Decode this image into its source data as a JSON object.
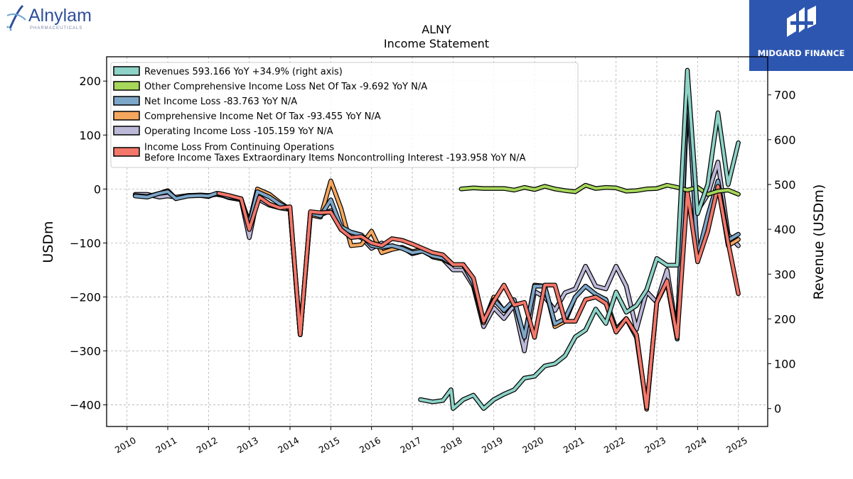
{
  "brand_left": {
    "name": "Alnylam",
    "sub": "PHARMACEUTICALS"
  },
  "brand_right": {
    "name": "MIDGARD FINANCE"
  },
  "chart_data": {
    "type": "line",
    "title": "ALNY",
    "subtitle": "Income Statement",
    "ylabel": "USDm",
    "y2label": "Revenue (USDm)",
    "ylim": [
      -440,
      245
    ],
    "y2lim": [
      -40,
      785
    ],
    "yticks": [
      200,
      100,
      0,
      -100,
      -200,
      -300,
      -400
    ],
    "ytick_labels": [
      "200",
      "100",
      "0",
      "−100",
      "−200",
      "−300",
      "−400"
    ],
    "y2ticks": [
      0,
      100,
      200,
      300,
      400,
      500,
      600,
      700
    ],
    "xlim": [
      2009.5,
      2025.72
    ],
    "xticks": [
      2010,
      2011,
      2012,
      2013,
      2014,
      2015,
      2016,
      2017,
      2018,
      2019,
      2020,
      2021,
      2022,
      2023,
      2024,
      2025
    ],
    "xtick_labels": [
      "2010",
      "2011",
      "2012",
      "2013",
      "2014",
      "2015",
      "2016",
      "2017",
      "2018",
      "2019",
      "2020",
      "2021",
      "2022",
      "2023",
      "2024",
      "2025"
    ],
    "grid": true,
    "legend_placement": "upper-left",
    "series": [
      {
        "name": "Operating Income Loss",
        "legend": "Operating Income Loss  -105.159 YoY N/A",
        "color": "#bcb8d8",
        "axis": "left",
        "x": [
          2010.2,
          2010.5,
          2010.8,
          2011.0,
          2011.2,
          2011.5,
          2011.8,
          2012.0,
          2012.2,
          2012.5,
          2012.8,
          2013.0,
          2013.2,
          2013.5,
          2013.75,
          2014.0,
          2014.25,
          2014.5,
          2014.75,
          2015.0,
          2015.25,
          2015.5,
          2015.75,
          2016.0,
          2016.25,
          2016.5,
          2016.75,
          2017.0,
          2017.25,
          2017.5,
          2017.75,
          2018.0,
          2018.25,
          2018.5,
          2018.75,
          2019.0,
          2019.25,
          2019.5,
          2019.75,
          2020.0,
          2020.25,
          2020.5,
          2020.75,
          2021.0,
          2021.25,
          2021.5,
          2021.75,
          2022.0,
          2022.25,
          2022.5,
          2022.75,
          2023.0,
          2023.25,
          2023.5,
          2023.75,
          2024.0,
          2024.25,
          2024.5,
          2024.75,
          2025.0
        ],
        "y": [
          -10,
          -10,
          -15,
          -13,
          -15,
          -12,
          -11,
          -12,
          -10,
          -14,
          -20,
          -90,
          -18,
          -30,
          -35,
          -38,
          -270,
          -44,
          -48,
          -40,
          -75,
          -85,
          -90,
          -110,
          -100,
          -110,
          -108,
          -120,
          -115,
          -125,
          -130,
          -150,
          -150,
          -180,
          -255,
          -220,
          -240,
          -215,
          -300,
          -190,
          -200,
          -225,
          -192,
          -185,
          -143,
          -180,
          -185,
          -143,
          -180,
          -260,
          -190,
          -210,
          -150,
          -270,
          170,
          -40,
          -10,
          50,
          -85,
          -105.159
        ]
      },
      {
        "name": "Comprehensive Income Net Of Tax",
        "legend": "Comprehensive Income Net Of Tax  -93.455 YoY N/A",
        "color": "#f5a75e",
        "axis": "left",
        "x": [
          2010.2,
          2010.5,
          2010.8,
          2011.0,
          2011.2,
          2011.5,
          2011.8,
          2012.0,
          2012.2,
          2012.5,
          2012.8,
          2013.0,
          2013.2,
          2013.5,
          2013.75,
          2014.0,
          2014.25,
          2014.5,
          2014.75,
          2015.0,
          2015.25,
          2015.5,
          2015.75,
          2016.0,
          2016.25,
          2016.5,
          2016.75,
          2017.0,
          2017.25,
          2017.5,
          2017.75,
          2018.0,
          2018.25,
          2018.5,
          2018.75,
          2019.0,
          2019.25,
          2019.5,
          2019.75,
          2020.0,
          2020.25,
          2020.5,
          2020.75,
          2021.0,
          2021.25,
          2021.5,
          2021.75,
          2022.0,
          2022.25,
          2022.5,
          2022.75,
          2023.0,
          2023.25,
          2023.5,
          2023.75,
          2024.0,
          2024.25,
          2024.5,
          2024.75,
          2025.0
        ],
        "y": [
          -12,
          -14,
          -8,
          -3,
          -18,
          -12,
          -12,
          -14,
          -8,
          -16,
          -20,
          -62,
          0,
          -10,
          -25,
          -38,
          -270,
          -48,
          -52,
          15,
          -36,
          -105,
          -103,
          -78,
          -118,
          -112,
          -108,
          -116,
          -112,
          -126,
          -130,
          -140,
          -140,
          -170,
          -248,
          -200,
          -226,
          -208,
          -275,
          -178,
          -180,
          -255,
          -245,
          -200,
          -180,
          -195,
          -205,
          -265,
          -240,
          -270,
          -408,
          -210,
          -172,
          -278,
          205,
          -130,
          -60,
          10,
          -105,
          -93.455
        ]
      },
      {
        "name": "Net Income Loss",
        "legend": "Net Income Loss  -83.763 YoY N/A",
        "color": "#7da7c9",
        "axis": "left",
        "x": [
          2010.2,
          2010.5,
          2010.8,
          2011.0,
          2011.2,
          2011.5,
          2011.8,
          2012.0,
          2012.2,
          2012.5,
          2012.8,
          2013.0,
          2013.2,
          2013.5,
          2013.75,
          2014.0,
          2014.25,
          2014.5,
          2014.75,
          2015.0,
          2015.25,
          2015.5,
          2015.75,
          2016.0,
          2016.25,
          2016.5,
          2016.75,
          2017.0,
          2017.25,
          2017.5,
          2017.75,
          2018.0,
          2018.25,
          2018.5,
          2018.75,
          2019.0,
          2019.25,
          2019.5,
          2019.75,
          2020.0,
          2020.25,
          2020.5,
          2020.75,
          2021.0,
          2021.25,
          2021.5,
          2021.75,
          2022.0,
          2022.25,
          2022.5,
          2022.75,
          2023.0,
          2023.25,
          2023.5,
          2023.75,
          2024.0,
          2024.25,
          2024.5,
          2024.75,
          2025.0
        ],
        "y": [
          -13,
          -15,
          -8,
          -5,
          -18,
          -13,
          -12,
          -13,
          -8,
          -15,
          -18,
          -65,
          -5,
          -15,
          -28,
          -38,
          -270,
          -45,
          -50,
          -20,
          -70,
          -80,
          -85,
          -105,
          -108,
          -105,
          -110,
          -118,
          -115,
          -124,
          -128,
          -140,
          -140,
          -175,
          -245,
          -205,
          -225,
          -205,
          -275,
          -180,
          -180,
          -250,
          -240,
          -200,
          -180,
          -195,
          -205,
          -260,
          -240,
          -275,
          -405,
          -210,
          -172,
          -278,
          200,
          -125,
          -50,
          15,
          -95,
          -83.763
        ]
      },
      {
        "name": "Income Loss From Continuing Operations Before Income Taxes Extraordinary Items Noncontrolling Interest",
        "legend": "Income Loss From Continuing Operations\nBefore Income Taxes Extraordinary Items Noncontrolling Interest  -193.958 YoY N/A",
        "color": "#f4776a",
        "axis": "left",
        "x": [
          2012.25,
          2012.5,
          2012.8,
          2013.0,
          2013.25,
          2013.5,
          2013.75,
          2014.0,
          2014.25,
          2014.5,
          2014.75,
          2015.0,
          2015.25,
          2015.5,
          2015.75,
          2016.0,
          2016.25,
          2016.5,
          2016.75,
          2017.0,
          2017.25,
          2017.5,
          2017.75,
          2018.0,
          2018.25,
          2018.5,
          2018.75,
          2019.0,
          2019.25,
          2019.5,
          2019.75,
          2020.0,
          2020.25,
          2020.5,
          2020.75,
          2021.0,
          2021.25,
          2021.5,
          2021.75,
          2022.0,
          2022.25,
          2022.5,
          2022.75,
          2023.0,
          2023.25,
          2023.5,
          2023.75,
          2024.0,
          2024.25,
          2024.5,
          2024.75,
          2025.0
        ],
        "y": [
          -8,
          -12,
          -18,
          -75,
          -15,
          -28,
          -35,
          -33,
          -270,
          -42,
          -44,
          -43,
          -75,
          -90,
          -88,
          -100,
          -105,
          -92,
          -95,
          -102,
          -110,
          -118,
          -122,
          -140,
          -140,
          -165,
          -245,
          -208,
          -178,
          -215,
          -210,
          -275,
          -178,
          -178,
          -245,
          -245,
          -205,
          -200,
          -212,
          -265,
          -240,
          -270,
          -405,
          -210,
          -170,
          -275,
          -5,
          -135,
          -78,
          5,
          -100,
          -193.958
        ]
      },
      {
        "name": "Other Comprehensive Income Loss Net Of Tax",
        "legend": "Other Comprehensive Income Loss Net Of Tax  -9.692 YoY N/A",
        "color": "#a6d65a",
        "axis": "left",
        "x": [
          2018.2,
          2018.5,
          2018.75,
          2019.0,
          2019.25,
          2019.5,
          2019.75,
          2020.0,
          2020.25,
          2020.5,
          2020.75,
          2021.0,
          2021.25,
          2021.5,
          2021.75,
          2022.0,
          2022.25,
          2022.5,
          2022.75,
          2023.0,
          2023.25,
          2023.5,
          2023.75,
          2024.0,
          2024.25,
          2024.5,
          2024.75,
          2025.0
        ],
        "y": [
          0,
          2,
          1,
          1,
          1,
          -2,
          3,
          -1,
          5,
          0,
          -3,
          -5,
          7,
          1,
          3,
          2,
          -4,
          -3,
          0,
          1,
          7,
          3,
          -2,
          3,
          -10,
          -4,
          -2,
          -9.692
        ]
      },
      {
        "name": "Revenues",
        "legend": "Revenues  593.166 YoY +34.9% (right axis)",
        "color": "#8dd3c7",
        "axis": "right",
        "x": [
          2017.2,
          2017.5,
          2017.75,
          2017.95,
          2018.0,
          2018.25,
          2018.5,
          2018.75,
          2019.0,
          2019.25,
          2019.5,
          2019.75,
          2020.0,
          2020.25,
          2020.5,
          2020.75,
          2021.0,
          2021.25,
          2021.5,
          2021.75,
          2022.0,
          2022.25,
          2022.5,
          2022.75,
          2023.0,
          2023.25,
          2023.5,
          2023.75,
          2024.0,
          2024.25,
          2024.5,
          2024.75,
          2025.0
        ],
        "y": [
          20,
          15,
          18,
          42,
          0,
          20,
          30,
          0,
          20,
          32,
          42,
          68,
          72,
          95,
          100,
          118,
          160,
          175,
          222,
          190,
          260,
          215,
          230,
          265,
          335,
          320,
          320,
          755,
          435,
          500,
          660,
          500,
          593.166
        ]
      }
    ]
  }
}
